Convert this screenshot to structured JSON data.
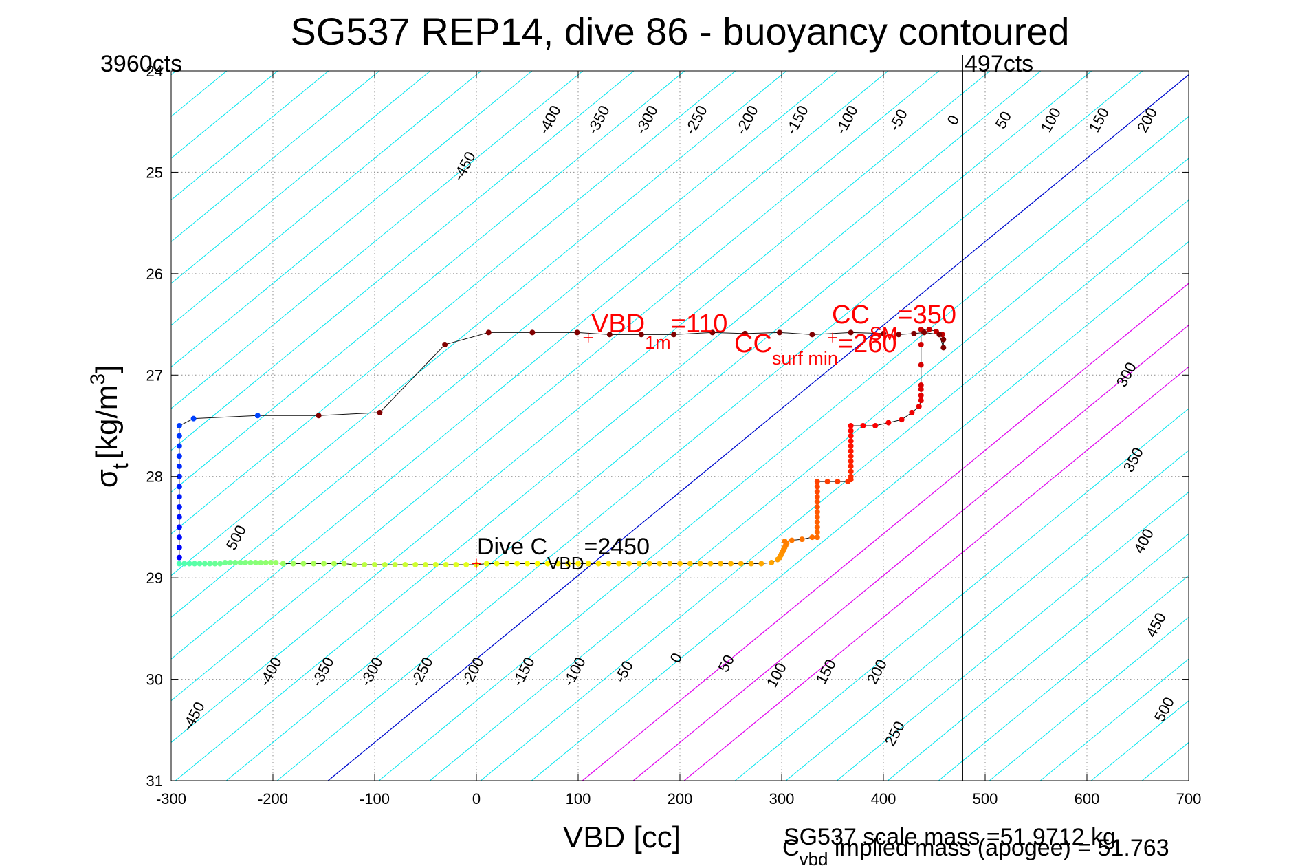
{
  "chart_data": {
    "type": "scatter",
    "title": "SG537 REP14, dive 86 - buoyancy contoured",
    "xlabel": "VBD [cc]",
    "ylabel_main": "σ",
    "ylabel_sub": "t",
    "ylabel_units": "[kg/m",
    "ylabel_sup": "3",
    "ylabel_close": "]",
    "xlim": [
      -300,
      700
    ],
    "ylim": [
      24,
      31
    ],
    "y_reversed": true,
    "grid": true,
    "xticks": [
      -300,
      -200,
      -100,
      0,
      100,
      200,
      300,
      400,
      500,
      600,
      700
    ],
    "yticks": [
      24,
      25,
      26,
      27,
      28,
      29,
      30,
      31
    ],
    "corner_labels": {
      "left": "3960cts",
      "right": "497cts"
    },
    "vertical_line_vbd": 478,
    "contours": {
      "angle_note": "lines of constant buoyancy; slope in data units",
      "slope_vbd_per_sigma": -121.5,
      "anchor_sigma": 29.8,
      "cyan_levels": [
        -450,
        -400,
        -350,
        -300,
        -250,
        -200,
        -150,
        -100,
        -50,
        50,
        100,
        150,
        250,
        300,
        350,
        400,
        450,
        500
      ],
      "zero_level": 0,
      "magenta_levels": [
        100,
        150,
        200
      ],
      "color_cyan": "#00e5ee",
      "color_zero": "#0000cc",
      "color_magenta": "#ee00ee",
      "top_labels": [
        "-450",
        "-400",
        "-350",
        "-300",
        "-250",
        "-200",
        "-150",
        "-100",
        "-50",
        "0",
        "50",
        "100",
        "150",
        "200"
      ],
      "bottom_labels": [
        "-450",
        "-400",
        "-350",
        "-300",
        "-250",
        "-200",
        "-150",
        "-100",
        "-50",
        "0",
        "50",
        "100",
        "150",
        "200",
        "250"
      ],
      "right_labels": [
        "300",
        "350",
        "400",
        "450",
        "500"
      ],
      "left_label": "500"
    },
    "series": [
      {
        "name": "dive profile",
        "points": [
          [
            -292,
            28.86
          ],
          [
            -287,
            28.86
          ],
          [
            -282,
            28.86
          ],
          [
            -277,
            28.86
          ],
          [
            -272,
            28.86
          ],
          [
            -267,
            28.86
          ],
          [
            -262,
            28.86
          ],
          [
            -257,
            28.86
          ],
          [
            -252,
            28.86
          ],
          [
            -247,
            28.85
          ],
          [
            -242,
            28.85
          ],
          [
            -237,
            28.85
          ],
          [
            -232,
            28.85
          ],
          [
            -227,
            28.85
          ],
          [
            -222,
            28.85
          ],
          [
            -217,
            28.85
          ],
          [
            -212,
            28.85
          ],
          [
            -207,
            28.85
          ],
          [
            -202,
            28.85
          ],
          [
            -197,
            28.85
          ],
          [
            -190,
            28.86
          ],
          [
            -180,
            28.86
          ],
          [
            -170,
            28.86
          ],
          [
            -160,
            28.86
          ],
          [
            -150,
            28.86
          ],
          [
            -140,
            28.86
          ],
          [
            -130,
            28.86
          ],
          [
            -120,
            28.87
          ],
          [
            -110,
            28.87
          ],
          [
            -100,
            28.87
          ],
          [
            -90,
            28.87
          ],
          [
            -80,
            28.87
          ],
          [
            -70,
            28.87
          ],
          [
            -60,
            28.87
          ],
          [
            -50,
            28.87
          ],
          [
            -40,
            28.87
          ],
          [
            -30,
            28.87
          ],
          [
            -20,
            28.87
          ],
          [
            -10,
            28.87
          ],
          [
            0,
            28.87
          ],
          [
            10,
            28.86
          ],
          [
            20,
            28.86
          ],
          [
            30,
            28.86
          ],
          [
            40,
            28.86
          ],
          [
            50,
            28.86
          ],
          [
            60,
            28.86
          ],
          [
            70,
            28.86
          ],
          [
            80,
            28.86
          ],
          [
            90,
            28.86
          ],
          [
            100,
            28.86
          ],
          [
            110,
            28.86
          ],
          [
            120,
            28.86
          ],
          [
            130,
            28.86
          ],
          [
            140,
            28.86
          ],
          [
            150,
            28.86
          ],
          [
            160,
            28.86
          ],
          [
            170,
            28.86
          ],
          [
            180,
            28.86
          ],
          [
            190,
            28.86
          ],
          [
            200,
            28.86
          ],
          [
            210,
            28.86
          ],
          [
            220,
            28.86
          ],
          [
            230,
            28.86
          ],
          [
            240,
            28.86
          ],
          [
            250,
            28.86
          ],
          [
            260,
            28.86
          ],
          [
            270,
            28.86
          ],
          [
            280,
            28.86
          ],
          [
            290,
            28.85
          ],
          [
            296,
            28.82
          ],
          [
            298,
            28.8
          ],
          [
            299,
            28.78
          ],
          [
            300,
            28.76
          ],
          [
            301,
            28.74
          ],
          [
            302,
            28.72
          ],
          [
            303,
            28.7
          ],
          [
            304,
            28.68
          ],
          [
            305,
            28.66
          ],
          [
            303,
            28.64
          ],
          [
            310,
            28.63
          ],
          [
            320,
            28.62
          ],
          [
            330,
            28.6
          ],
          [
            335,
            28.6
          ],
          [
            335,
            28.55
          ],
          [
            335,
            28.5
          ],
          [
            335,
            28.45
          ],
          [
            335,
            28.4
          ],
          [
            335,
            28.35
          ],
          [
            335,
            28.3
          ],
          [
            335,
            28.25
          ],
          [
            335,
            28.2
          ],
          [
            335,
            28.15
          ],
          [
            335,
            28.1
          ],
          [
            335,
            28.05
          ],
          [
            345,
            28.05
          ],
          [
            355,
            28.05
          ],
          [
            365,
            28.05
          ],
          [
            368,
            28.03
          ],
          [
            368,
            28.0
          ],
          [
            368,
            27.95
          ],
          [
            368,
            27.9
          ],
          [
            368,
            27.85
          ],
          [
            368,
            27.8
          ],
          [
            368,
            27.75
          ],
          [
            368,
            27.7
          ],
          [
            368,
            27.65
          ],
          [
            368,
            27.6
          ],
          [
            368,
            27.55
          ],
          [
            368,
            27.5
          ],
          [
            380,
            27.5
          ],
          [
            392,
            27.5
          ],
          [
            405,
            27.47
          ],
          [
            418,
            27.44
          ],
          [
            428,
            27.37
          ],
          [
            435,
            27.31
          ],
          [
            437,
            27.25
          ],
          [
            437,
            27.2
          ],
          [
            437,
            27.14
          ],
          [
            437,
            27.1
          ],
          [
            437,
            26.9
          ],
          [
            437,
            26.7
          ],
          [
            437,
            26.55
          ],
          [
            445,
            26.55
          ],
          [
            452,
            26.57
          ],
          [
            458,
            26.6
          ],
          [
            459,
            26.65
          ],
          [
            459,
            26.73
          ],
          [
            455,
            26.6
          ],
          [
            440,
            26.58
          ],
          [
            430,
            26.59
          ],
          [
            415,
            26.6
          ],
          [
            400,
            26.59
          ],
          [
            368,
            26.58
          ],
          [
            330,
            26.6
          ],
          [
            298,
            26.58
          ],
          [
            264,
            26.59
          ],
          [
            232,
            26.58
          ],
          [
            194,
            26.6
          ],
          [
            162,
            26.6
          ],
          [
            131,
            26.6
          ],
          [
            99,
            26.58
          ],
          [
            55,
            26.58
          ],
          [
            12,
            26.58
          ],
          [
            -31,
            26.7
          ],
          [
            -95,
            27.37
          ],
          [
            -155,
            27.4
          ],
          [
            -215,
            27.4
          ],
          [
            -278,
            27.43
          ],
          [
            -292,
            27.5
          ],
          [
            -292,
            27.6
          ],
          [
            -292,
            27.7
          ],
          [
            -292,
            27.8
          ],
          [
            -292,
            27.9
          ],
          [
            -292,
            28.0
          ],
          [
            -292,
            28.1
          ],
          [
            -292,
            28.2
          ],
          [
            -292,
            28.3
          ],
          [
            -292,
            28.4
          ],
          [
            -292,
            28.5
          ],
          [
            -292,
            28.6
          ],
          [
            -292,
            28.7
          ],
          [
            -292,
            28.8
          ]
        ]
      }
    ],
    "annotations": {
      "vbd1m": {
        "main": "VBD",
        "sub": "1m",
        "value": "=110",
        "x": 110,
        "y": 26.63
      },
      "cc_surf_min": {
        "main": "CC",
        "sub": "surf min",
        "value": "=260",
        "x": 350,
        "y": 26.63
      },
      "cc_sm": {
        "main": "CC",
        "sub": "SM",
        "value": "=350",
        "x": 437,
        "y": 26.5
      },
      "dive_cvbd": {
        "main": "Dive C",
        "sub": "VBD",
        "value": "=2450",
        "x": 0,
        "y": 28.86
      }
    },
    "footer": {
      "scale_mass": "SG537 scale mass =51.9712 kg",
      "implied_main": "C",
      "implied_sub": "vbd",
      "implied_rest": " implied mass (apogee) = 51.763"
    }
  }
}
